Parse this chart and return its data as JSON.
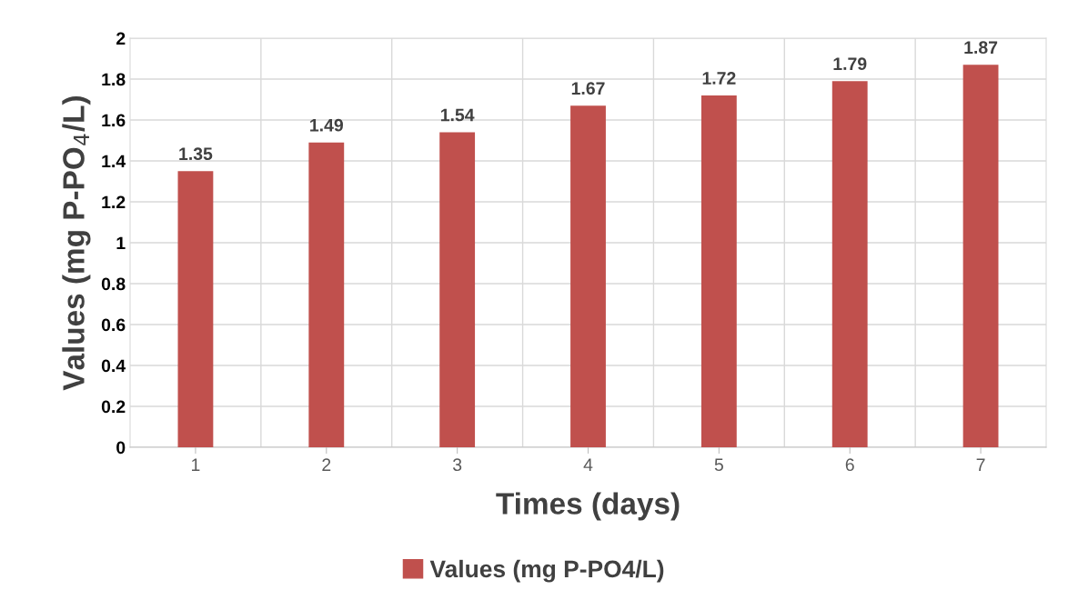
{
  "chart_data": {
    "type": "bar",
    "xlabel": "Times (days)",
    "ylabel": "Values (mg P-PO$_{4}$/L)",
    "categories": [
      "1",
      "2",
      "3",
      "4",
      "5",
      "6",
      "7"
    ],
    "series": [
      {
        "name": "Values (mg P-PO4/L)",
        "color": "#c0504d",
        "values": [
          1.35,
          1.49,
          1.54,
          1.67,
          1.72,
          1.79,
          1.87
        ]
      }
    ],
    "ylim": [
      0,
      2
    ],
    "yticks": [
      0,
      0.2,
      0.4,
      0.6,
      0.8,
      1,
      1.2,
      1.4,
      1.6,
      1.8,
      2
    ],
    "data_labels": true,
    "grid": true,
    "legend": "bottom"
  }
}
